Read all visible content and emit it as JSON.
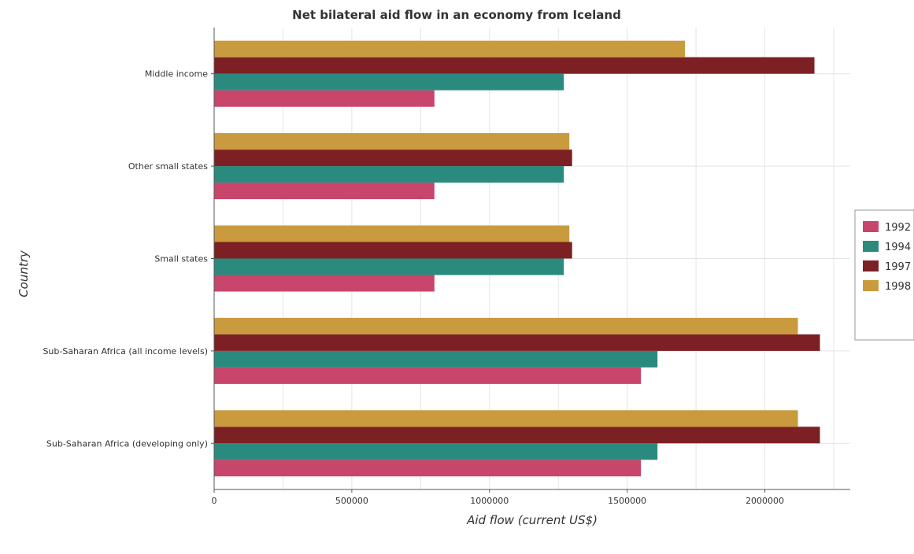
{
  "chart_data": {
    "type": "bar",
    "orientation": "horizontal",
    "title": "Net bilateral aid flow in an economy from Iceland",
    "xlabel": "Aid flow (current US$)",
    "ylabel": "Country",
    "categories": [
      "Middle income",
      "Other small states",
      "Small states",
      "Sub-Saharan Africa (all income levels)",
      "Sub-Saharan Africa (developing only)"
    ],
    "series": [
      {
        "name": "1992",
        "color": "#c8456b",
        "values": [
          800000,
          800000,
          800000,
          1550000,
          1550000
        ]
      },
      {
        "name": "1994",
        "color": "#2a8a7e",
        "values": [
          1270000,
          1270000,
          1270000,
          1610000,
          1610000
        ]
      },
      {
        "name": "1997",
        "color": "#7c2024",
        "values": [
          2180000,
          1300000,
          1300000,
          2200000,
          2200000
        ]
      },
      {
        "name": "1998",
        "color": "#c99a3e",
        "values": [
          1710000,
          1290000,
          1290000,
          2120000,
          2120000
        ]
      }
    ],
    "xlim": [
      0,
      2310000
    ],
    "xticks": [
      0,
      500000,
      1000000,
      1500000,
      2000000
    ],
    "xtick_labels": [
      "0",
      "500000",
      "1000000",
      "1500000",
      "2000000"
    ],
    "grid": true,
    "legend_position": "right"
  }
}
